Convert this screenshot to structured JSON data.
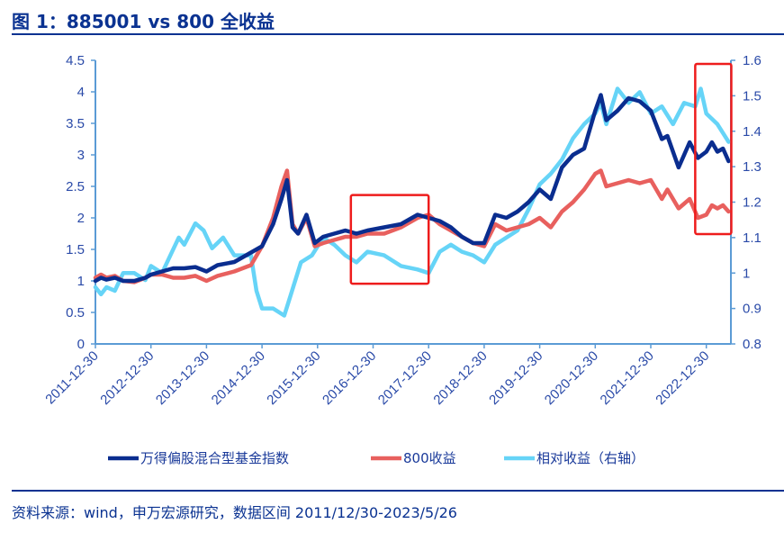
{
  "header": {
    "title": "图 1：885001 vs 800 全收益"
  },
  "footer": {
    "source": "资料来源：wind，申万宏源研究，数据区间 2011/12/30-2023/5/26"
  },
  "colors": {
    "title": "#0a3291",
    "axis": "#5b9bd5",
    "series1": "#0a2d8f",
    "series2": "#e8605e",
    "series3": "#66d4f7",
    "highlight": "#ee1c1c"
  },
  "chart_data": {
    "type": "line",
    "title": "图 1：885001 vs 800 全收益",
    "xlabel": "",
    "ylabel": "",
    "x_type": "date (year fraction)",
    "xlim": [
      2012.0,
      2023.4
    ],
    "ylim": [
      0,
      4.5
    ],
    "y2lim": [
      0.8,
      1.6
    ],
    "yticks": [
      "0",
      "0.5",
      "1",
      "1.5",
      "2",
      "2.5",
      "3",
      "3.5",
      "4",
      "4.5"
    ],
    "y2ticks": [
      "0.8",
      "0.9",
      "1",
      "1.1",
      "1.2",
      "1.3",
      "1.4",
      "1.5",
      "1.6"
    ],
    "xticks": [
      "2011-12-30",
      "2012-12-30",
      "2013-12-30",
      "2014-12-30",
      "2015-12-30",
      "2016-12-30",
      "2017-12-30",
      "2018-12-30",
      "2019-12-30",
      "2020-12-30",
      "2021-12-30",
      "2022-12-30"
    ],
    "grid": false,
    "legend_position": "bottom",
    "series": [
      {
        "name": "万得偏股混合型基金指数",
        "axis": "left",
        "x": [
          2012.0,
          2012.1,
          2012.2,
          2012.35,
          2012.5,
          2012.7,
          2012.9,
          2013.0,
          2013.2,
          2013.4,
          2013.6,
          2013.8,
          2014.0,
          2014.2,
          2014.5,
          2014.8,
          2015.0,
          2015.2,
          2015.35,
          2015.45,
          2015.55,
          2015.65,
          2015.8,
          2015.95,
          2016.1,
          2016.3,
          2016.5,
          2016.7,
          2016.9,
          2017.2,
          2017.5,
          2017.8,
          2018.0,
          2018.2,
          2018.4,
          2018.6,
          2018.8,
          2019.0,
          2019.2,
          2019.4,
          2019.6,
          2019.8,
          2020.0,
          2020.2,
          2020.4,
          2020.6,
          2020.8,
          2021.0,
          2021.1,
          2021.2,
          2021.4,
          2021.6,
          2021.8,
          2022.0,
          2022.2,
          2022.3,
          2022.5,
          2022.7,
          2022.85,
          2023.0,
          2023.1,
          2023.2,
          2023.3,
          2023.4
        ],
        "values": [
          1.0,
          1.05,
          1.02,
          1.05,
          1.0,
          1.0,
          1.05,
          1.1,
          1.15,
          1.2,
          1.2,
          1.22,
          1.15,
          1.25,
          1.3,
          1.45,
          1.55,
          1.9,
          2.3,
          2.6,
          1.85,
          1.75,
          2.05,
          1.6,
          1.7,
          1.75,
          1.8,
          1.75,
          1.8,
          1.85,
          1.9,
          2.05,
          2.0,
          1.95,
          1.85,
          1.7,
          1.6,
          1.6,
          2.05,
          2.0,
          2.1,
          2.25,
          2.45,
          2.3,
          2.8,
          3.0,
          3.1,
          3.7,
          3.95,
          3.55,
          3.7,
          3.9,
          3.85,
          3.7,
          3.25,
          3.3,
          2.8,
          3.2,
          2.95,
          3.05,
          3.2,
          3.05,
          3.1,
          2.9
        ]
      },
      {
        "name": "800收益",
        "axis": "left",
        "x": [
          2012.0,
          2012.1,
          2012.2,
          2012.35,
          2012.5,
          2012.7,
          2012.9,
          2013.0,
          2013.2,
          2013.4,
          2013.6,
          2013.8,
          2014.0,
          2014.2,
          2014.5,
          2014.8,
          2015.0,
          2015.2,
          2015.35,
          2015.45,
          2015.55,
          2015.65,
          2015.8,
          2015.95,
          2016.1,
          2016.3,
          2016.5,
          2016.7,
          2016.9,
          2017.2,
          2017.5,
          2017.8,
          2018.0,
          2018.2,
          2018.4,
          2018.6,
          2018.8,
          2019.0,
          2019.2,
          2019.4,
          2019.6,
          2019.8,
          2020.0,
          2020.2,
          2020.4,
          2020.6,
          2020.8,
          2021.0,
          2021.1,
          2021.2,
          2021.4,
          2021.6,
          2021.8,
          2022.0,
          2022.2,
          2022.3,
          2022.5,
          2022.7,
          2022.85,
          2023.0,
          2023.1,
          2023.2,
          2023.3,
          2023.4
        ],
        "values": [
          1.05,
          1.1,
          1.05,
          1.08,
          1.0,
          0.98,
          1.05,
          1.1,
          1.1,
          1.05,
          1.05,
          1.08,
          1.0,
          1.08,
          1.15,
          1.25,
          1.55,
          2.0,
          2.5,
          2.75,
          1.9,
          1.75,
          2.0,
          1.55,
          1.6,
          1.65,
          1.7,
          1.7,
          1.75,
          1.75,
          1.85,
          2.0,
          2.05,
          1.9,
          1.8,
          1.7,
          1.6,
          1.55,
          1.9,
          1.8,
          1.85,
          1.9,
          2.0,
          1.85,
          2.1,
          2.25,
          2.45,
          2.7,
          2.75,
          2.5,
          2.55,
          2.6,
          2.55,
          2.6,
          2.3,
          2.45,
          2.15,
          2.3,
          2.0,
          2.05,
          2.2,
          2.15,
          2.2,
          2.1
        ]
      },
      {
        "name": "相对收益（右轴）",
        "axis": "right",
        "x": [
          2012.0,
          2012.1,
          2012.2,
          2012.35,
          2012.5,
          2012.7,
          2012.9,
          2013.0,
          2013.2,
          2013.35,
          2013.5,
          2013.6,
          2013.8,
          2013.95,
          2014.1,
          2014.3,
          2014.5,
          2014.8,
          2014.9,
          2015.0,
          2015.2,
          2015.4,
          2015.5,
          2015.7,
          2015.9,
          2016.1,
          2016.3,
          2016.5,
          2016.7,
          2016.9,
          2017.2,
          2017.5,
          2017.8,
          2018.0,
          2018.2,
          2018.4,
          2018.6,
          2018.8,
          2019.0,
          2019.2,
          2019.4,
          2019.6,
          2019.8,
          2020.0,
          2020.2,
          2020.4,
          2020.6,
          2020.8,
          2021.0,
          2021.1,
          2021.2,
          2021.4,
          2021.6,
          2021.8,
          2022.0,
          2022.2,
          2022.4,
          2022.6,
          2022.8,
          2022.9,
          2023.0,
          2023.2,
          2023.4
        ],
        "values": [
          0.96,
          0.94,
          0.96,
          0.95,
          1.0,
          1.0,
          0.98,
          1.02,
          1.0,
          1.05,
          1.1,
          1.08,
          1.14,
          1.12,
          1.07,
          1.1,
          1.05,
          1.05,
          0.95,
          0.9,
          0.9,
          0.88,
          0.93,
          1.03,
          1.05,
          1.1,
          1.08,
          1.05,
          1.03,
          1.06,
          1.05,
          1.02,
          1.01,
          1.0,
          1.06,
          1.08,
          1.06,
          1.05,
          1.03,
          1.08,
          1.1,
          1.12,
          1.18,
          1.25,
          1.28,
          1.32,
          1.38,
          1.42,
          1.45,
          1.48,
          1.42,
          1.52,
          1.48,
          1.51,
          1.45,
          1.47,
          1.42,
          1.48,
          1.47,
          1.52,
          1.45,
          1.42,
          1.37
        ]
      }
    ],
    "annotations": [
      {
        "type": "rectangle",
        "x_range": [
          2016.6,
          2018.0
        ],
        "y_range": [
          0.97,
          1.22
        ],
        "axis": "right"
      },
      {
        "type": "rectangle",
        "x_range": [
          2022.8,
          2023.45
        ],
        "y_range": [
          1.11,
          1.59
        ],
        "axis": "right"
      }
    ]
  }
}
